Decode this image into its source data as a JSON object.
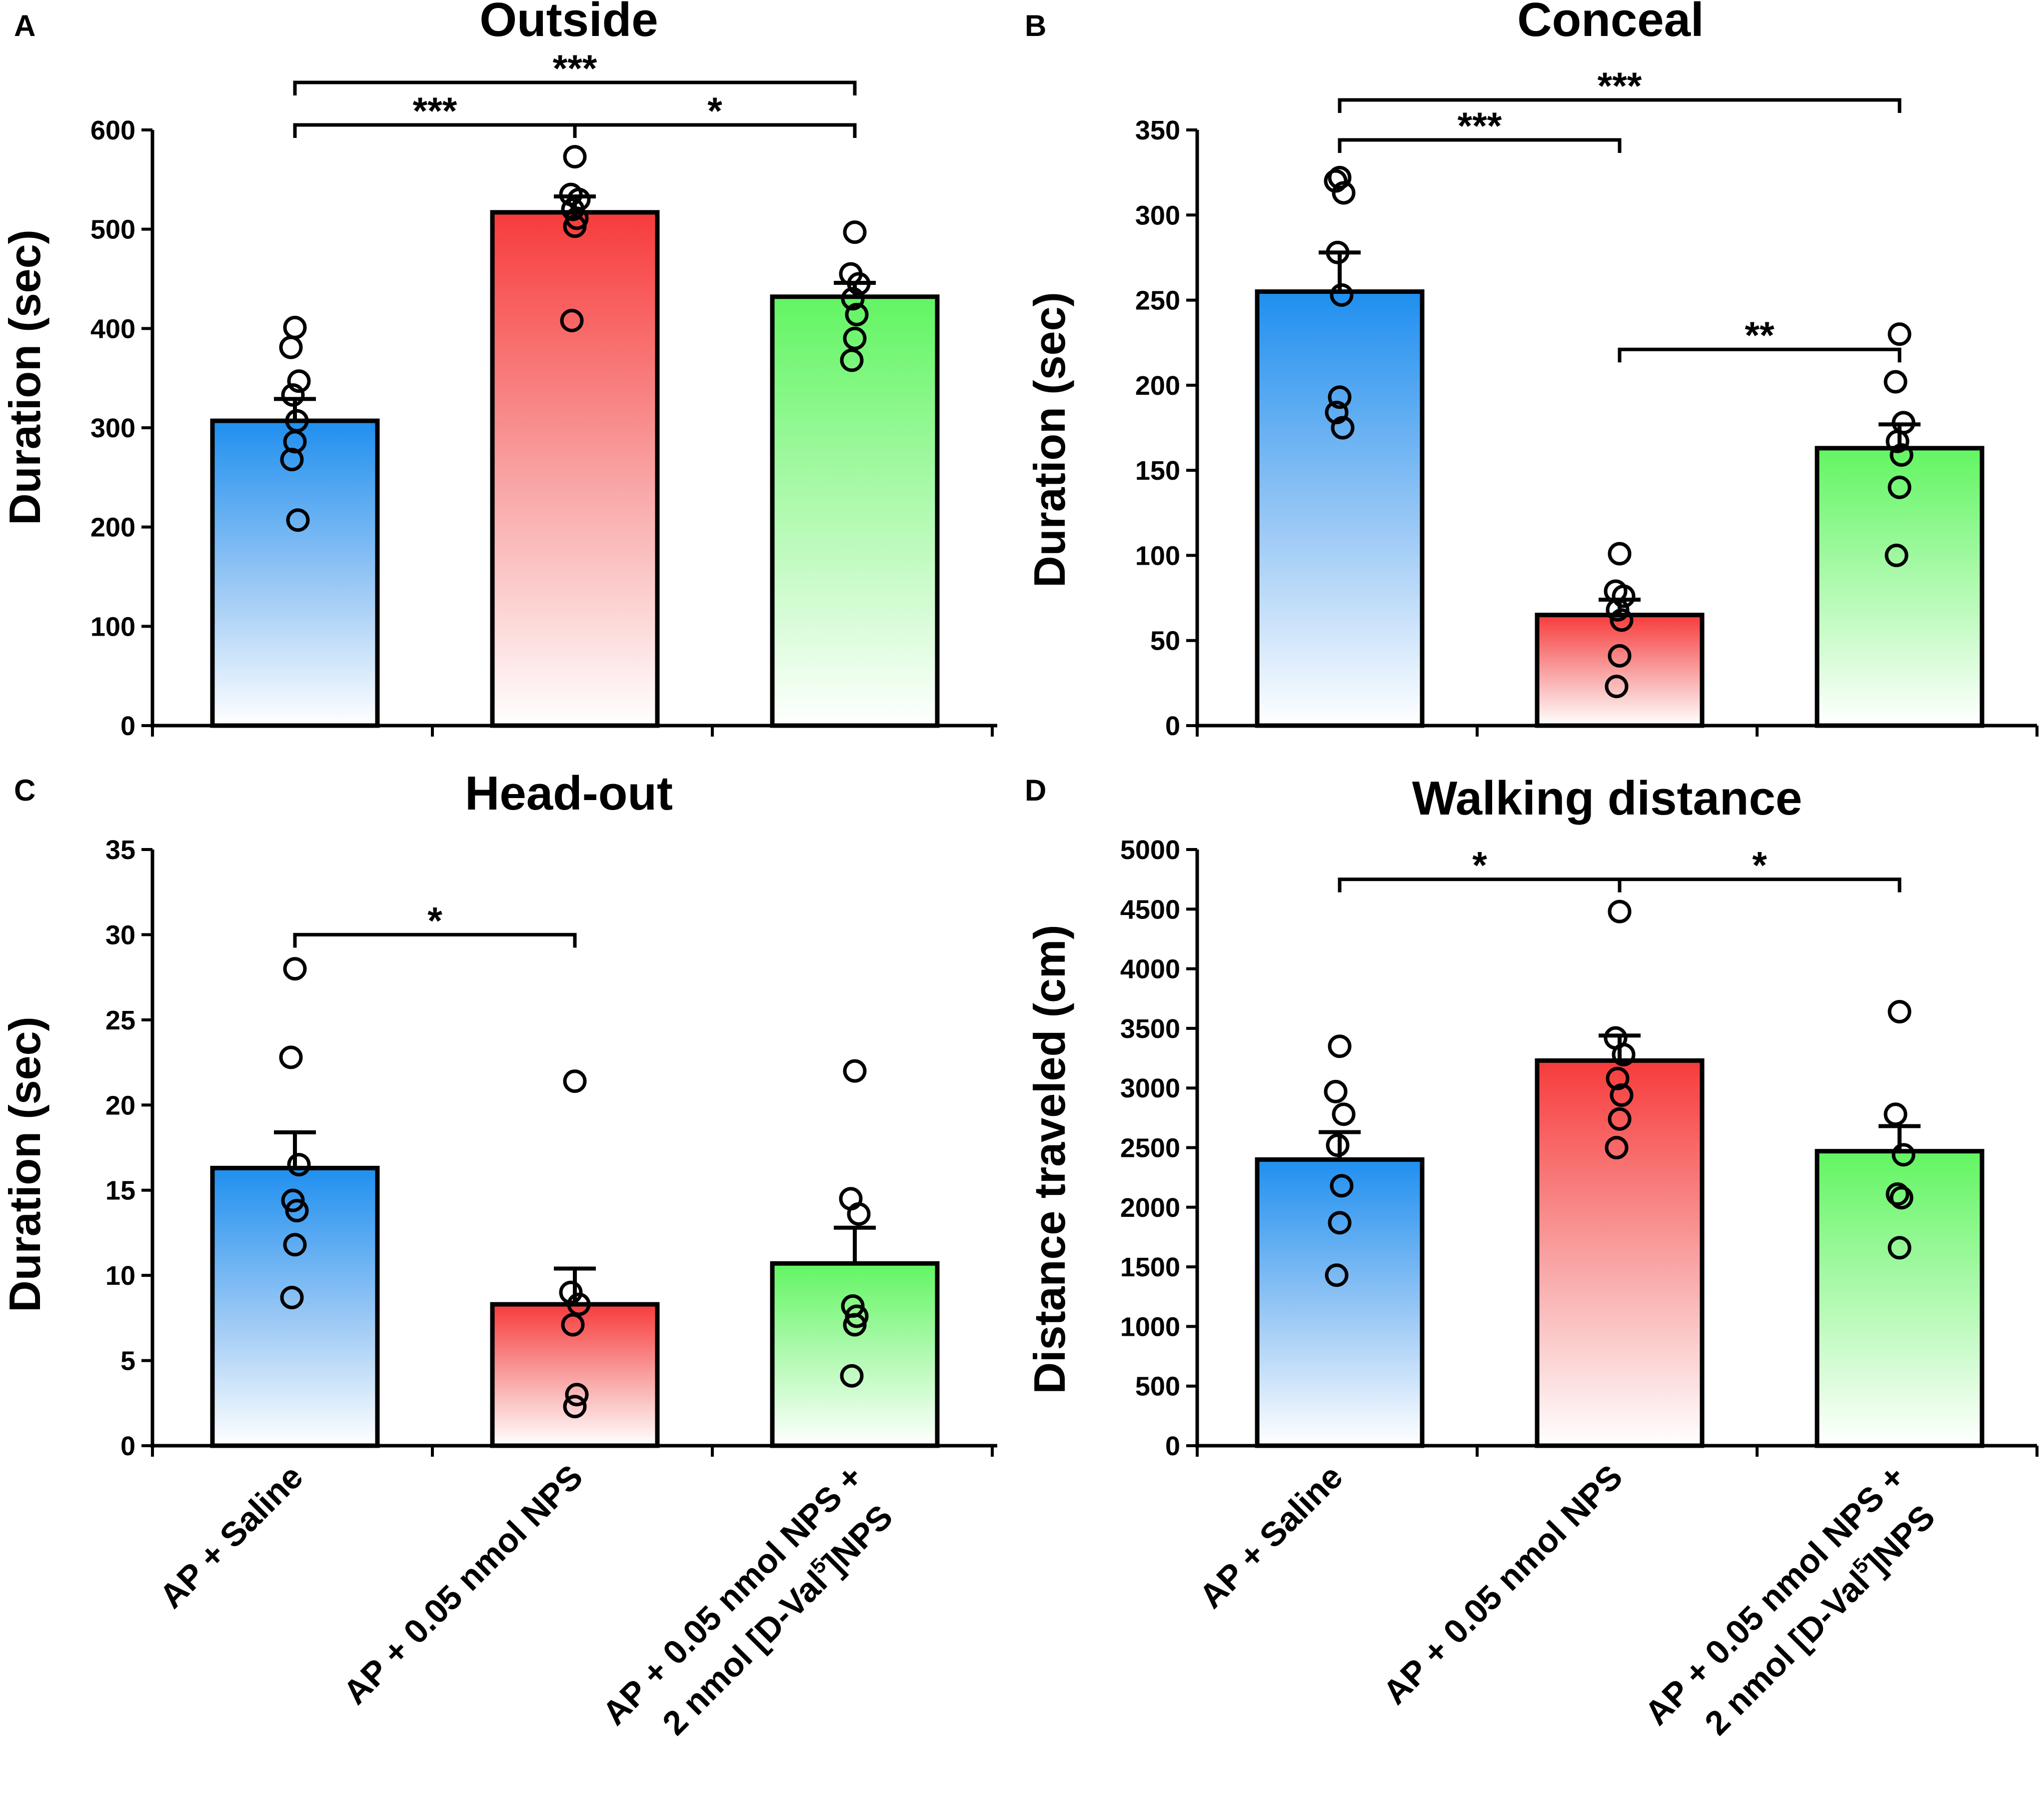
{
  "figure": {
    "categories": [
      "AP + Saline",
      "AP + 0.05 nmol NPS",
      "AP + 0.05 nmol NPS +"
    ],
    "category_line2": [
      "",
      "",
      "2 nmol [D-Val"
    ],
    "category_sup": "5",
    "category_suffix": "]NPS",
    "colors": {
      "blue": "#1f8fef",
      "red": "#f73b3b",
      "green": "#62f562",
      "ink": "#000000"
    }
  },
  "chart_data": [
    {
      "panel": "A",
      "type": "bar",
      "title": "Outside",
      "ylabel": "Duration (sec)",
      "ylim": [
        0,
        600
      ],
      "yticks": [
        0,
        100,
        200,
        300,
        400,
        500,
        600
      ],
      "categories": [
        "AP + Saline",
        "AP + 0.05 nmol NPS",
        "AP + 0.05 nmol NPS + 2 nmol [D-Val5]NPS"
      ],
      "values": [
        307,
        517,
        432
      ],
      "sem": [
        22,
        16,
        14
      ],
      "points": [
        [
          401,
          381,
          347,
          333,
          307,
          286,
          268,
          207
        ],
        [
          573,
          535,
          530,
          520,
          511,
          503,
          408
        ],
        [
          497,
          455,
          445,
          430,
          414,
          390,
          368
        ]
      ],
      "significance": [
        {
          "from": 0,
          "to": 2,
          "label": "***",
          "level": 1
        },
        {
          "from": 0,
          "to": 1,
          "label": "***",
          "level": 0
        },
        {
          "from": 1,
          "to": 2,
          "label": "*",
          "level": 0
        }
      ]
    },
    {
      "panel": "B",
      "type": "bar",
      "title": "Conceal",
      "ylabel": "Duration (sec)",
      "ylim": [
        0,
        350
      ],
      "yticks": [
        0,
        50,
        100,
        150,
        200,
        250,
        300,
        350
      ],
      "categories": [
        "AP + Saline",
        "AP + 0.05 nmol NPS",
        "AP + 0.05 nmol NPS + 2 nmol [D-Val5]NPS"
      ],
      "values": [
        255,
        65,
        163
      ],
      "sem": [
        23,
        9,
        14
      ],
      "points": [
        [
          322,
          320,
          313,
          278,
          253,
          193,
          184,
          175
        ],
        [
          101,
          79,
          76,
          68,
          62,
          41,
          23
        ],
        [
          230,
          202,
          178,
          167,
          159,
          140,
          100
        ]
      ],
      "significance": [
        {
          "from": 0,
          "to": 2,
          "label": "***",
          "level": 1
        },
        {
          "from": 0,
          "to": 1,
          "label": "***",
          "level": 0
        },
        {
          "from": 1,
          "to": 2,
          "label": "**",
          "level": -1
        }
      ]
    },
    {
      "panel": "C",
      "type": "bar",
      "title": "Head-out",
      "ylabel": "Duration (sec)",
      "ylim": [
        0,
        35
      ],
      "yticks": [
        0,
        5,
        10,
        15,
        20,
        25,
        30,
        35
      ],
      "categories": [
        "AP + Saline",
        "AP + 0.05 nmol NPS",
        "AP + 0.05 nmol NPS + 2 nmol [D-Val5]NPS"
      ],
      "values": [
        16.3,
        8.3,
        10.7
      ],
      "sem": [
        2.1,
        2.1,
        2.1
      ],
      "points": [
        [
          28.0,
          22.8,
          16.5,
          14.4,
          13.8,
          11.8,
          8.7
        ],
        [
          21.4,
          9.0,
          8.3,
          7.1,
          3.0,
          2.3
        ],
        [
          22.0,
          14.5,
          13.6,
          8.2,
          7.6,
          7.1,
          4.1
        ]
      ],
      "significance": [
        {
          "from": 0,
          "to": 1,
          "label": "*",
          "level": 0
        }
      ]
    },
    {
      "panel": "D",
      "type": "bar",
      "title": "Walking distance",
      "ylabel": "Distance traveled (cm)",
      "ylim": [
        0,
        5000
      ],
      "yticks": [
        0,
        500,
        1000,
        1500,
        2000,
        2500,
        3000,
        3500,
        4000,
        4500,
        5000
      ],
      "categories": [
        "AP + Saline",
        "AP + 0.05 nmol NPS",
        "AP + 0.05 nmol NPS + 2 nmol [D-Val5]NPS"
      ],
      "values": [
        2400,
        3230,
        2470
      ],
      "sem": [
        230,
        210,
        210
      ],
      "points": [
        [
          3350,
          2970,
          2780,
          2520,
          2180,
          1870,
          1430
        ],
        [
          4480,
          3420,
          3280,
          3080,
          2940,
          2740,
          2500
        ],
        [
          3640,
          2780,
          2440,
          2110,
          2080,
          1660
        ]
      ],
      "significance": [
        {
          "from": 0,
          "to": 2,
          "label": "*",
          "level": 0,
          "split_at": 1
        }
      ]
    }
  ]
}
